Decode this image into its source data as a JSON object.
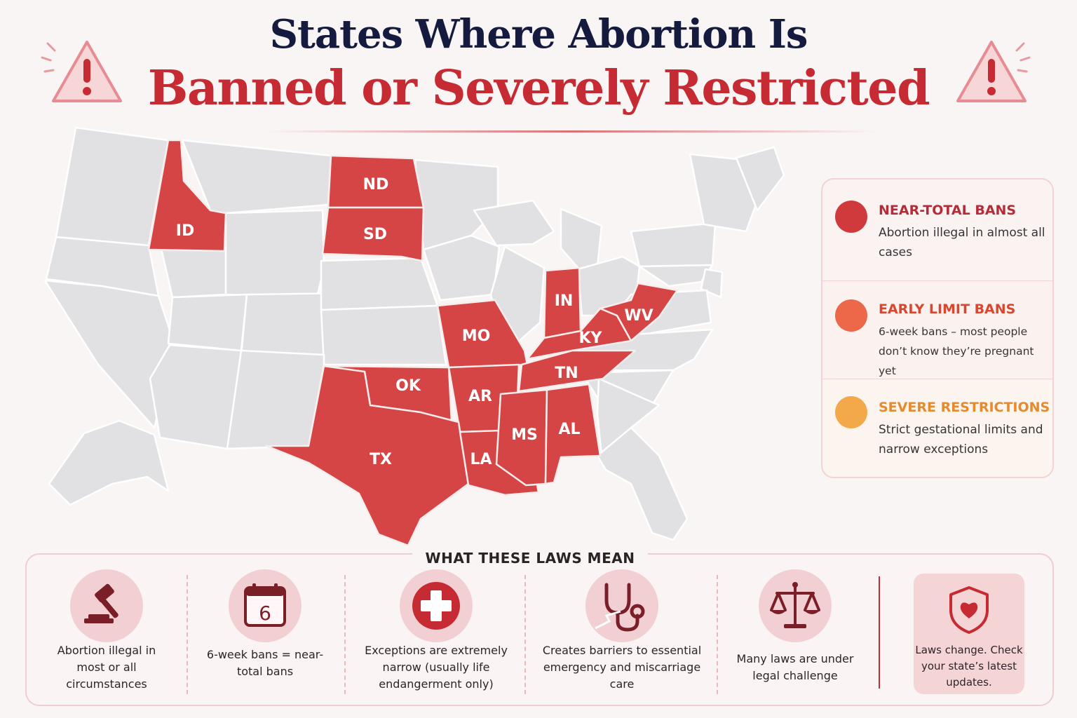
{
  "header": {
    "title_line1": "States Where Abortion Is",
    "title_line2": "Banned or Severely Restricted",
    "left_icon": "warning-triangle-icon",
    "right_icon": "warning-triangle-icon"
  },
  "colors": {
    "navy": "#141b3f",
    "accent_red": "#c62a32",
    "state_red": "#d64545",
    "near_total": "#d03a3c",
    "early_limit": "#ec6848",
    "severe": "#f3a849",
    "state_gray": "#e1e1e4"
  },
  "map": {
    "highlighted_states": [
      {
        "abbr": "ID",
        "category": "near_total"
      },
      {
        "abbr": "ND",
        "category": "near_total"
      },
      {
        "abbr": "SD",
        "category": "near_total"
      },
      {
        "abbr": "MO",
        "category": "near_total"
      },
      {
        "abbr": "IN",
        "category": "near_total"
      },
      {
        "abbr": "KY",
        "category": "near_total"
      },
      {
        "abbr": "WV",
        "category": "near_total"
      },
      {
        "abbr": "TN",
        "category": "near_total"
      },
      {
        "abbr": "OK",
        "category": "near_total"
      },
      {
        "abbr": "AR",
        "category": "near_total"
      },
      {
        "abbr": "TX",
        "category": "near_total"
      },
      {
        "abbr": "LA",
        "category": "near_total"
      },
      {
        "abbr": "MS",
        "category": "near_total"
      },
      {
        "abbr": "AL",
        "category": "near_total"
      }
    ]
  },
  "legend": {
    "items": [
      {
        "heading": "NEAR-TOTAL BANS",
        "description": "Abortion illegal in almost all cases",
        "color": "#d03a3c",
        "heading_color": "#b52b37"
      },
      {
        "heading": "EARLY LIMIT BANS",
        "description": "6-week bans – most people don’t know they’re pregnant yet",
        "color": "#ec6848",
        "heading_color": "#d9472f"
      },
      {
        "heading": "SEVERE RESTRICTIONS",
        "description": "Strict gestational limits and narrow exceptions",
        "color": "#f3a849",
        "heading_color": "#e68a2e"
      }
    ]
  },
  "bottom": {
    "title": "WHAT THESE LAWS MEAN",
    "items": [
      {
        "icon": "gavel-icon",
        "text": "Abortion illegal in most or all circumstances"
      },
      {
        "icon": "calendar-icon",
        "calendar_number": "6",
        "text": "6-week bans = near-total bans"
      },
      {
        "icon": "medical-cross-icon",
        "text": "Exceptions are extremely narrow (usually life endangerment only)"
      },
      {
        "icon": "stethoscope-icon",
        "text": "Creates barriers to essential emergency and miscarriage care"
      },
      {
        "icon": "scales-icon",
        "text": "Many laws are under legal challenge"
      }
    ],
    "callout": {
      "icon": "shield-heart-icon",
      "text": "Laws change. Check your state’s latest updates."
    }
  }
}
